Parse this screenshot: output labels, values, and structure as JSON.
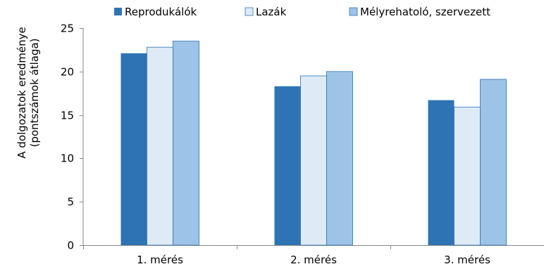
{
  "chart_data": {
    "type": "bar",
    "title": "",
    "xlabel": "",
    "ylabel_lines": [
      "A dolgozatok eredménye",
      "(pontszámok átlaga)"
    ],
    "categories": [
      "1. mérés",
      "2. mérés",
      "3. mérés"
    ],
    "series": [
      {
        "name": "Reprodukálók",
        "color": "#2E74B5",
        "values": [
          22.1,
          18.3,
          16.7
        ]
      },
      {
        "name": "Lazák",
        "color": "#DEEBF7",
        "values": [
          22.8,
          19.5,
          15.9
        ]
      },
      {
        "name": "Mélyrehatoló, szervezett",
        "color": "#9DC3E6",
        "values": [
          23.5,
          20.0,
          19.1
        ]
      }
    ],
    "ylim": [
      0,
      25
    ],
    "yticks": [
      0,
      5,
      10,
      15,
      20,
      25
    ],
    "grid": false,
    "legend_position": "top"
  }
}
